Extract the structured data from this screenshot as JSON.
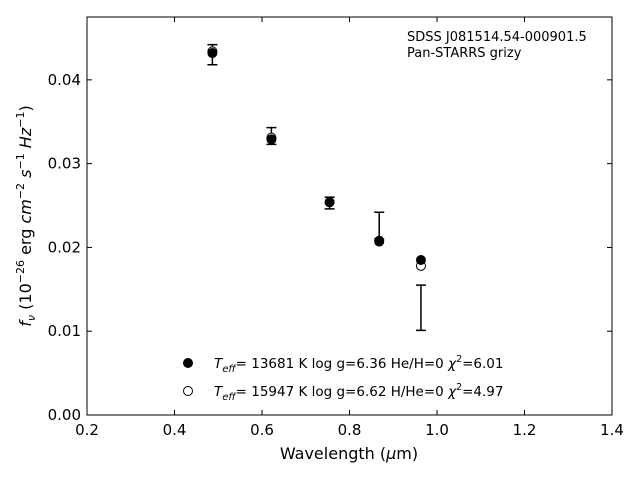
{
  "chart_data": {
    "type": "scatter",
    "xlabel": "Wavelength (μm)",
    "ylabel": "f_ν (10^-26 erg cm^-2 s^-1 Hz^-1)",
    "xlim": [
      0.2,
      1.4
    ],
    "ylim": [
      0.0,
      0.0475
    ],
    "x_ticks": [
      0.2,
      0.4,
      0.6,
      0.8,
      1.0,
      1.2,
      1.4
    ],
    "x_tick_labels": [
      "0.2",
      "0.4",
      "0.6",
      "0.8",
      "1.0",
      "1.2",
      "1.4"
    ],
    "y_ticks": [
      0.0,
      0.01,
      0.02,
      0.03,
      0.04
    ],
    "y_tick_labels": [
      "0.00",
      "0.01",
      "0.02",
      "0.03",
      "0.04"
    ],
    "grid": false,
    "legend_position": "bottom-center",
    "annotations": [
      "SDSS J081514.54-000901.5",
      "Pan-STARRS grizy"
    ],
    "observed": {
      "x": [
        0.4866,
        0.6215,
        0.7545,
        0.8679,
        0.9633
      ],
      "y": [
        0.043,
        0.0333,
        0.0253,
        0.0226,
        0.0128
      ],
      "yerr": [
        0.0012,
        0.001,
        0.0007,
        0.0016,
        0.0027
      ]
    },
    "series": [
      {
        "name": "T_eff= 13681 K  log g=6.36  He/H=0  χ²=6.01",
        "marker": "filled-circle",
        "color": "#000000",
        "x": [
          0.4866,
          0.6215,
          0.7545,
          0.8679,
          0.9633
        ],
        "y": [
          0.0432,
          0.0329,
          0.0254,
          0.0207,
          0.0185
        ]
      },
      {
        "name": "T_eff= 15947 K  log g=6.62  H/He=0  χ²=4.97",
        "marker": "open-circle",
        "color": "#000000",
        "x": [
          0.4866,
          0.6215,
          0.7545,
          0.8679,
          0.9633
        ],
        "y": [
          0.0434,
          0.0331,
          0.0254,
          0.0208,
          0.0178
        ]
      }
    ]
  }
}
